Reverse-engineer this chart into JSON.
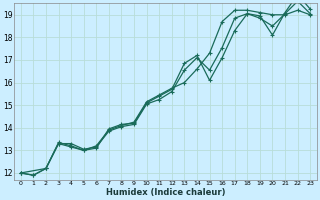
{
  "title": "",
  "xlabel": "Humidex (Indice chaleur)",
  "ylabel": "",
  "background_color": "#cceeff",
  "grid_color": "#b8ddd8",
  "line_color": "#1a6b5a",
  "xlim": [
    -0.5,
    23.5
  ],
  "ylim": [
    11.7,
    19.5
  ],
  "xticks": [
    0,
    1,
    2,
    3,
    4,
    5,
    6,
    7,
    8,
    9,
    10,
    11,
    12,
    13,
    14,
    15,
    16,
    17,
    18,
    19,
    20,
    21,
    22,
    23
  ],
  "yticks": [
    12,
    13,
    14,
    15,
    16,
    17,
    18,
    19
  ],
  "series": [
    {
      "x": [
        0,
        1,
        2,
        3,
        4,
        5,
        6,
        7,
        8,
        9,
        10,
        11,
        12,
        13,
        14,
        15,
        16,
        17,
        18,
        19,
        20,
        21,
        22,
        23
      ],
      "y": [
        12,
        11.9,
        12.2,
        13.35,
        13.2,
        13.0,
        13.2,
        13.9,
        14.1,
        14.25,
        15.15,
        15.45,
        15.75,
        16.0,
        16.6,
        17.3,
        18.7,
        19.2,
        19.2,
        19.1,
        19.0,
        19.0,
        19.2,
        19.0
      ]
    },
    {
      "x": [
        0,
        1,
        2,
        3,
        4,
        5,
        6,
        7,
        8,
        9,
        10,
        11,
        12,
        13,
        14,
        15,
        16,
        17,
        18,
        19,
        20,
        21,
        22,
        23
      ],
      "y": [
        12,
        11.9,
        12.2,
        13.3,
        13.3,
        13.05,
        13.15,
        13.85,
        14.05,
        14.15,
        15.05,
        15.25,
        15.6,
        16.55,
        17.1,
        16.55,
        17.55,
        18.85,
        19.05,
        18.85,
        18.5,
        19.05,
        19.6,
        19.05
      ]
    },
    {
      "x": [
        0,
        2,
        3,
        4,
        5,
        6,
        7,
        8,
        9,
        10,
        11,
        12,
        13,
        14,
        15,
        16,
        17,
        18,
        19,
        20,
        21,
        22,
        23
      ],
      "y": [
        12,
        12.2,
        13.3,
        13.15,
        13.0,
        13.1,
        13.95,
        14.15,
        14.2,
        15.1,
        15.4,
        15.7,
        16.85,
        17.2,
        16.1,
        17.1,
        18.3,
        19.05,
        18.95,
        18.1,
        19.1,
        19.9,
        19.25
      ]
    }
  ]
}
